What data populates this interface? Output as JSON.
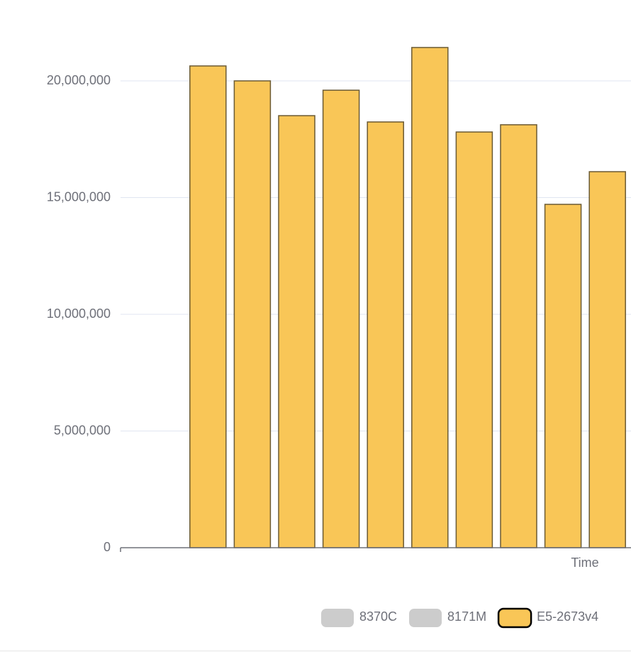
{
  "chart_data": {
    "type": "bar",
    "x_axis_name": "Time",
    "categories": [
      null,
      null,
      null,
      null,
      null,
      null,
      null,
      null,
      null,
      null
    ],
    "series": [
      {
        "name": "8370C",
        "visible": false,
        "values": [
          null,
          null,
          null,
          null,
          null,
          null,
          null,
          null,
          null,
          null
        ]
      },
      {
        "name": "8171M",
        "visible": false,
        "values": [
          null,
          null,
          null,
          null,
          null,
          null,
          null,
          null,
          null,
          null
        ]
      },
      {
        "name": "E5-2673v4",
        "visible": true,
        "color": "#f9c657",
        "values": [
          20640000,
          20000000,
          18510000,
          19600000,
          18240000,
          21430000,
          17810000,
          18120000,
          14710000,
          16110000
        ]
      }
    ],
    "legend_inactive_color": "#cccccc",
    "ylim": [
      0,
      22500000
    ],
    "yticks": [
      {
        "value": 0,
        "label": "0"
      },
      {
        "value": 5000000,
        "label": "5,000,000"
      },
      {
        "value": 10000000,
        "label": "10,000,000"
      },
      {
        "value": 15000000,
        "label": "15,000,000"
      },
      {
        "value": 20000000,
        "label": "20,000,000"
      }
    ],
    "grid": true
  }
}
